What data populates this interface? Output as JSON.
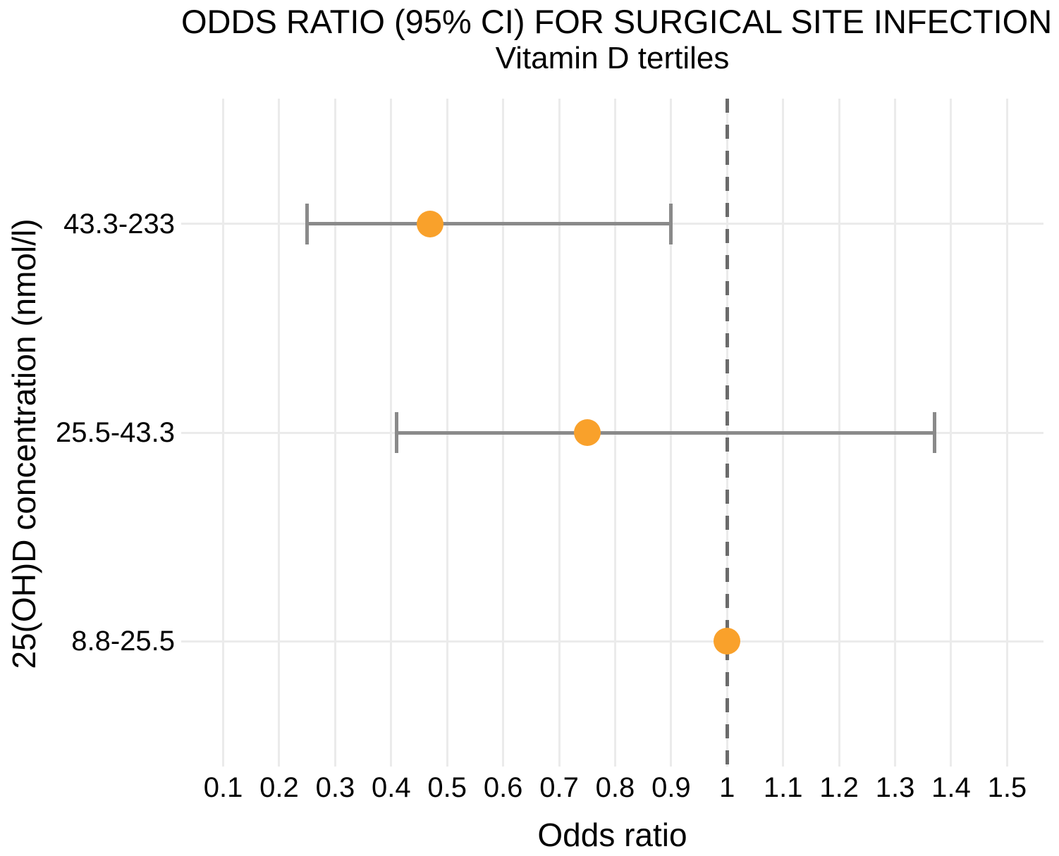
{
  "chart_data": {
    "type": "scatter",
    "variant": "forest-plot",
    "title": "ODDS RATIO (95% CI) FOR SURGICAL SITE INFECTION",
    "subtitle": "Vitamin D tertiles",
    "xlabel": "Odds ratio",
    "ylabel": "25(OH)D concentration (nmol/l)",
    "x_ticks": [
      0.1,
      0.2,
      0.3,
      0.4,
      0.5,
      0.6,
      0.7,
      0.8,
      0.9,
      1,
      1.1,
      1.2,
      1.3,
      1.4,
      1.5
    ],
    "x_tick_labels": [
      "0.1",
      "0.2",
      "0.3",
      "0.4",
      "0.5",
      "0.6",
      "0.7",
      "0.8",
      "0.9",
      "1",
      "1.1",
      "1.2",
      "1.3",
      "1.4",
      "1.5"
    ],
    "xlim": [
      0.025,
      1.565
    ],
    "reference_line": 1,
    "grid": true,
    "legend": "none",
    "rows": [
      {
        "label": "43.3-233",
        "odds_ratio": 0.47,
        "ci_low": 0.25,
        "ci_high": 0.9
      },
      {
        "label": "25.5-43.3",
        "odds_ratio": 0.75,
        "ci_low": 0.41,
        "ci_high": 1.37
      },
      {
        "label": "8.8-25.5",
        "odds_ratio": 1.0,
        "ci_low": null,
        "ci_high": null
      }
    ],
    "colors": {
      "point": "#f9a12b",
      "error_bar": "#8a8a8a",
      "reference_line": "#6b6b6b",
      "gridline": "#ebebeb",
      "text": "#000000",
      "background": "#ffffff"
    }
  }
}
